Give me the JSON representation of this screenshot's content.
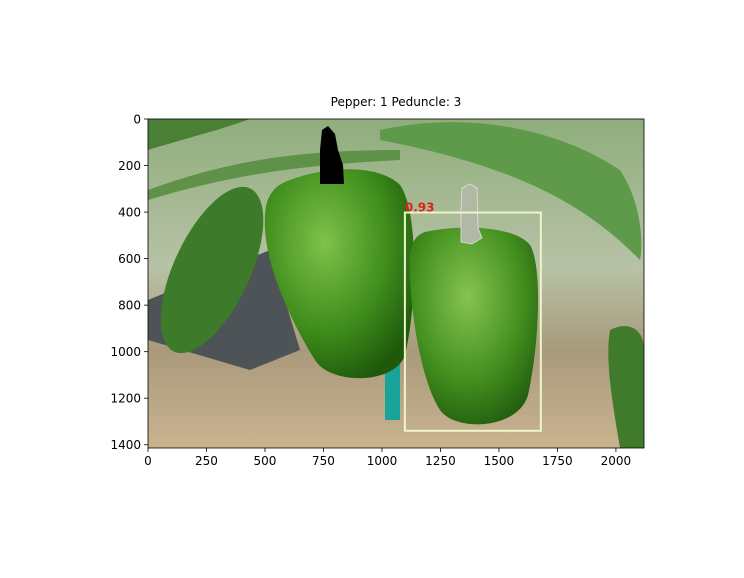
{
  "chart_data": {
    "type": "image",
    "title": "Pepper: 1 Peduncle: 3",
    "xlim": [
      0,
      2120
    ],
    "ylim": [
      1414,
      0
    ],
    "xticks": [
      0,
      250,
      500,
      750,
      1000,
      1250,
      1500,
      1750,
      2000
    ],
    "yticks": [
      0,
      200,
      400,
      600,
      800,
      1000,
      1200,
      1400
    ],
    "boxes": [
      {
        "x0": 1098,
        "y0": 402,
        "x1": 1679,
        "y1": 1340,
        "score": 0.93,
        "color": "#eef5c8",
        "label_color": "#e0201a"
      }
    ]
  }
}
